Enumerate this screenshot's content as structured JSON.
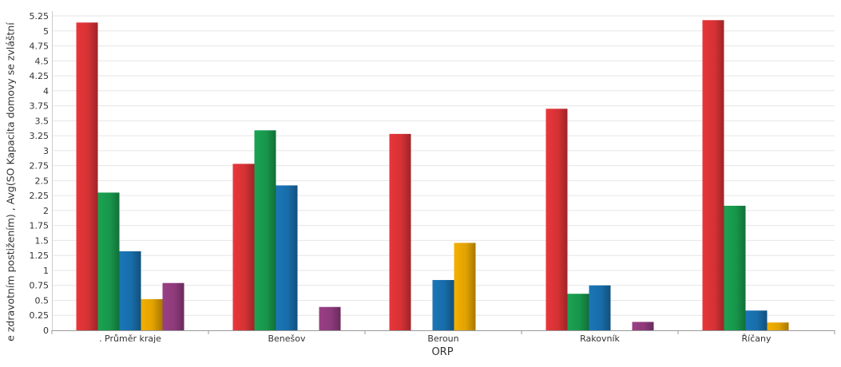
{
  "chart_data": {
    "type": "bar",
    "title": "",
    "xlabel": "ORP",
    "ylabel": "e zdravotním postižením) , Avg(SO Kapacita domovy se zvláštní",
    "categories": [
      ". Průměr kraje",
      "Benešov",
      "Beroun",
      "Rakovník",
      "Říčany"
    ],
    "series": [
      {
        "color": "#e8363a",
        "values": [
          5.14,
          2.78,
          3.28,
          3.7,
          5.18
        ]
      },
      {
        "color": "#1aa352",
        "values": [
          2.3,
          3.34,
          null,
          0.61,
          2.08
        ]
      },
      {
        "color": "#1a76b8",
        "values": [
          1.32,
          2.42,
          0.84,
          0.75,
          0.33
        ]
      },
      {
        "color": "#f5b000",
        "values": [
          0.52,
          null,
          1.46,
          null,
          0.13
        ]
      },
      {
        "color": "#9a3f86",
        "values": [
          0.79,
          0.39,
          null,
          0.14,
          null
        ]
      }
    ],
    "ylim": [
      0,
      5.25
    ],
    "yticks": [
      "0",
      "0.25",
      "0.5",
      "0.75",
      "1",
      "1.25",
      "1.5",
      "1.75",
      "2",
      "2.25",
      "2.5",
      "2.75",
      "3",
      "3.25",
      "3.5",
      "3.75",
      "4",
      "4.25",
      "4.5",
      "4.75",
      "5",
      "5.25"
    ],
    "grid": true,
    "legend": "none"
  }
}
